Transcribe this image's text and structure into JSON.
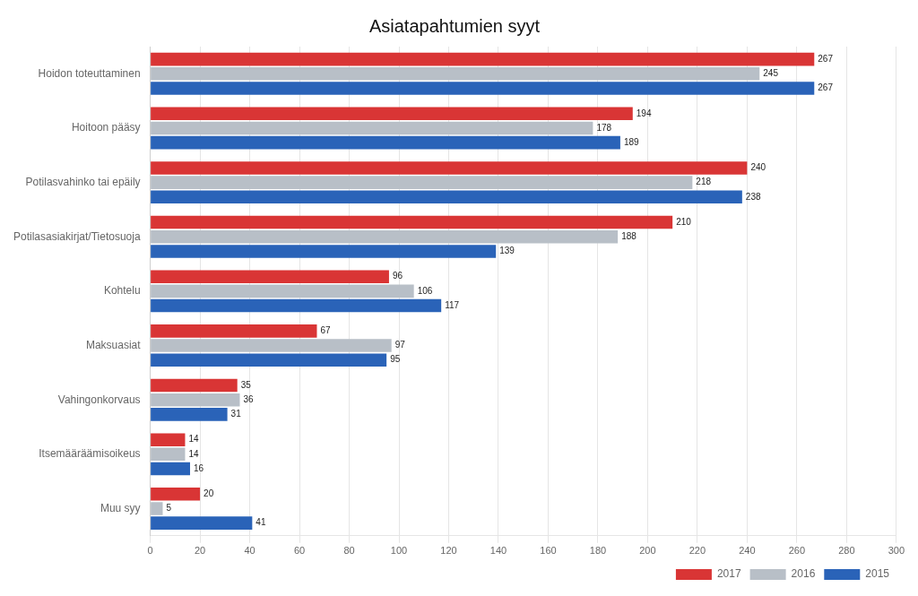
{
  "chart_data": {
    "type": "bar",
    "orientation": "horizontal",
    "title": "Asiatapahtumien syyt",
    "categories": [
      "Hoidon toteuttaminen",
      "Hoitoon pääsy",
      "Potilasvahinko tai epäily",
      "Potilasasiakirjat/Tietosuoja",
      "Kohtelu",
      "Maksuasiat",
      "Vahingonkorvaus",
      "Itsemääräämisoikeus",
      "Muu syy"
    ],
    "series": [
      {
        "name": "2017",
        "color": "#d93535",
        "values": [
          267,
          194,
          240,
          210,
          96,
          67,
          35,
          14,
          20
        ]
      },
      {
        "name": "2016",
        "color": "#b8bfc7",
        "values": [
          245,
          178,
          218,
          188,
          106,
          97,
          36,
          14,
          5
        ]
      },
      {
        "name": "2015",
        "color": "#2a63b8",
        "values": [
          267,
          189,
          238,
          139,
          117,
          95,
          31,
          16,
          41
        ]
      }
    ],
    "xlim": [
      0,
      300
    ],
    "xticks": [
      0,
      20,
      40,
      60,
      80,
      100,
      120,
      140,
      160,
      180,
      200,
      220,
      240,
      260,
      280,
      300
    ],
    "grid": true,
    "legend": "lower right",
    "data_labels": true
  }
}
